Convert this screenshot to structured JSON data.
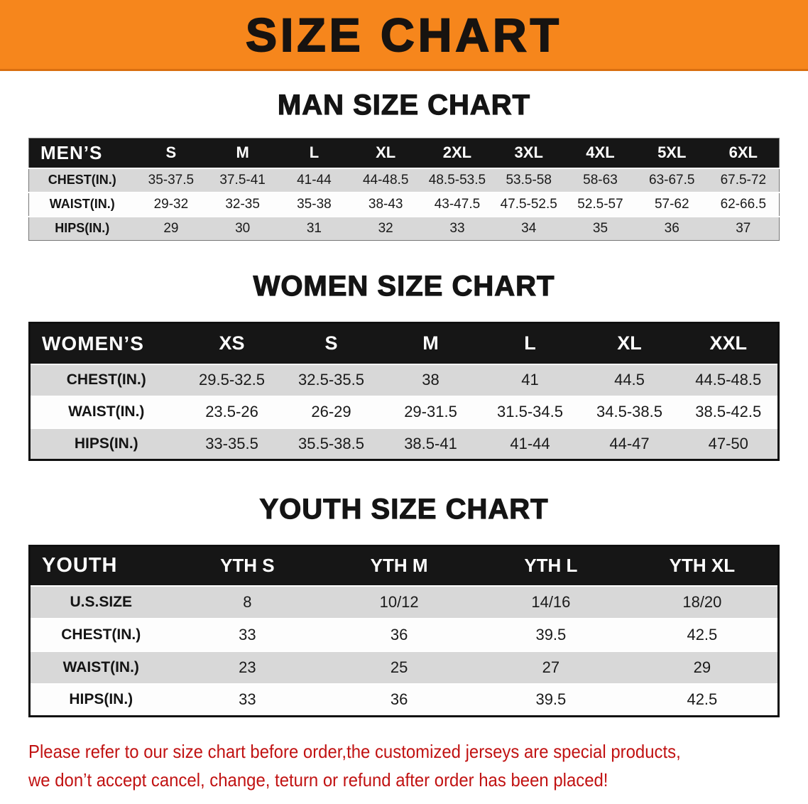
{
  "banner": {
    "title": "SIZE CHART"
  },
  "chart_data": [
    {
      "type": "table",
      "title": "MAN SIZE CHART",
      "columns": [
        "MEN’S",
        "S",
        "M",
        "L",
        "XL",
        "2XL",
        "3XL",
        "4XL",
        "5XL",
        "6XL"
      ],
      "rows": [
        {
          "label": "CHEST(IN.)",
          "values": [
            "35-37.5",
            "37.5-41",
            "41-44",
            "44-48.5",
            "48.5-53.5",
            "53.5-58",
            "58-63",
            "63-67.5",
            "67.5-72"
          ]
        },
        {
          "label": "WAIST(IN.)",
          "values": [
            "29-32",
            "32-35",
            "35-38",
            "38-43",
            "43-47.5",
            "47.5-52.5",
            "52.5-57",
            "57-62",
            "62-66.5"
          ]
        },
        {
          "label": "HIPS(IN.)",
          "values": [
            "29",
            "30",
            "31",
            "32",
            "33",
            "34",
            "35",
            "36",
            "37"
          ]
        }
      ]
    },
    {
      "type": "table",
      "title": "WOMEN SIZE CHART",
      "columns": [
        "WOMEN’S",
        "XS",
        "S",
        "M",
        "L",
        "XL",
        "XXL"
      ],
      "rows": [
        {
          "label": "CHEST(IN.)",
          "values": [
            "29.5-32.5",
            "32.5-35.5",
            "38",
            "41",
            "44.5",
            "44.5-48.5"
          ]
        },
        {
          "label": "WAIST(IN.)",
          "values": [
            "23.5-26",
            "26-29",
            "29-31.5",
            "31.5-34.5",
            "34.5-38.5",
            "38.5-42.5"
          ]
        },
        {
          "label": "HIPS(IN.)",
          "values": [
            "33-35.5",
            "35.5-38.5",
            "38.5-41",
            "41-44",
            "44-47",
            "47-50"
          ]
        }
      ]
    },
    {
      "type": "table",
      "title": "YOUTH SIZE CHART",
      "columns": [
        "YOUTH",
        "YTH S",
        "YTH M",
        "YTH L",
        "YTH XL"
      ],
      "rows": [
        {
          "label": "U.S.SIZE",
          "values": [
            "8",
            "10/12",
            "14/16",
            "18/20"
          ]
        },
        {
          "label": "CHEST(IN.)",
          "values": [
            "33",
            "36",
            "39.5",
            "42.5"
          ]
        },
        {
          "label": "WAIST(IN.)",
          "values": [
            "23",
            "25",
            "27",
            "29"
          ]
        },
        {
          "label": "HIPS(IN.)",
          "values": [
            "33",
            "36",
            "39.5",
            "42.5"
          ]
        }
      ]
    }
  ],
  "footer": {
    "line1": "Please refer to our size chart before order,the customized jerseys are special products,",
    "line2": "we don’t accept cancel, change, teturn or refund after order has been placed!"
  },
  "colors": {
    "banner_orange": "#f6861c",
    "header_black": "#161616",
    "row_gray": "#d8d8d8",
    "disclaimer_red": "#c11212"
  }
}
